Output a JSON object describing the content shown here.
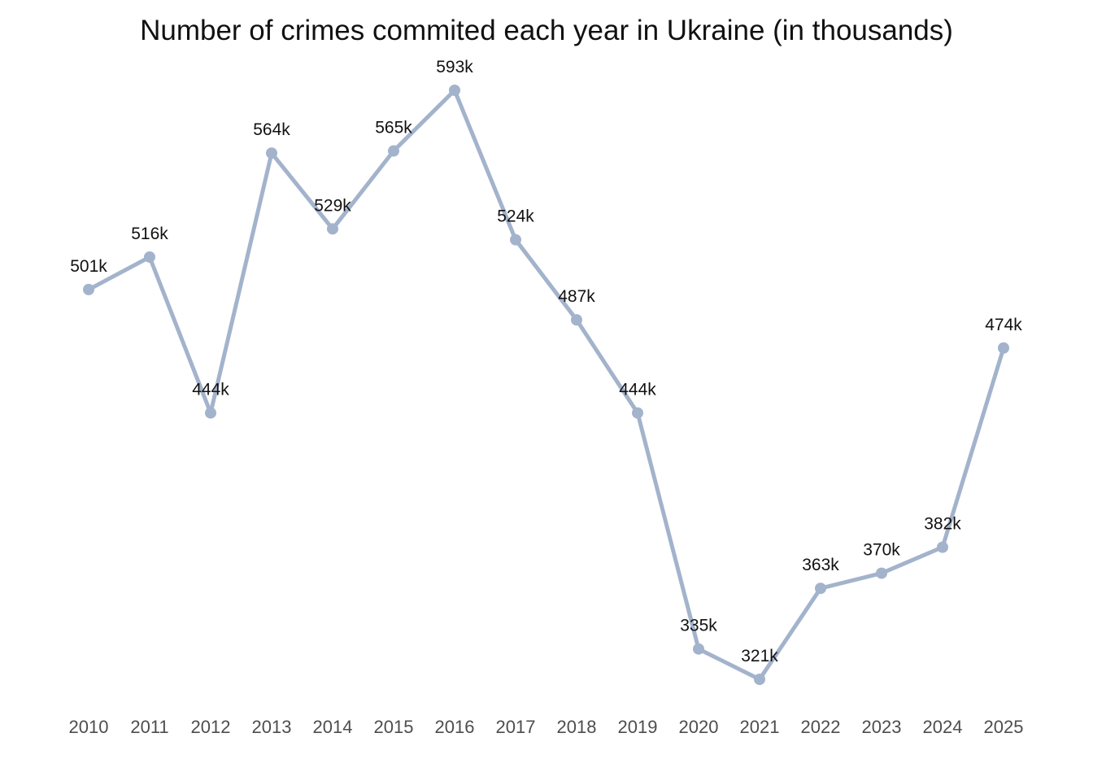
{
  "chart_data": {
    "type": "line",
    "title": "Number of crimes commited each year in Ukraine (in thousands)",
    "xlabel": "",
    "ylabel": "",
    "categories": [
      "2010",
      "2011",
      "2012",
      "2013",
      "2014",
      "2015",
      "2016",
      "2017",
      "2018",
      "2019",
      "2020",
      "2021",
      "2022",
      "2023",
      "2024",
      "2025"
    ],
    "series": [
      {
        "values": [
          501,
          516,
          444,
          564,
          529,
          565,
          593,
          524,
          487,
          444,
          335,
          321,
          363,
          370,
          382,
          474
        ],
        "labels": [
          "501k",
          "516k",
          "444k",
          "564k",
          "529k",
          "565k",
          "593k",
          "524k",
          "487k",
          "444k",
          "335k",
          "321k",
          "363k",
          "370k",
          "382k",
          "474k"
        ],
        "color": "#a3b3cc"
      }
    ],
    "ylim": [
      321,
      593
    ],
    "grid": false,
    "legend": "none"
  }
}
